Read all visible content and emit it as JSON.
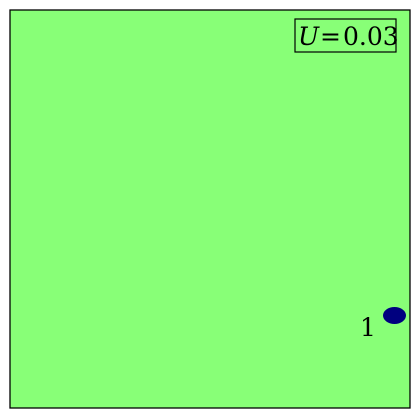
{
  "figure": {
    "background_color": "#88ff77",
    "frame_color": "#000000",
    "blob_color": "#00007f",
    "legend": {
      "variable": "U",
      "equals": "=",
      "value": "0.03"
    },
    "markers": [
      {
        "label": "1"
      }
    ]
  }
}
